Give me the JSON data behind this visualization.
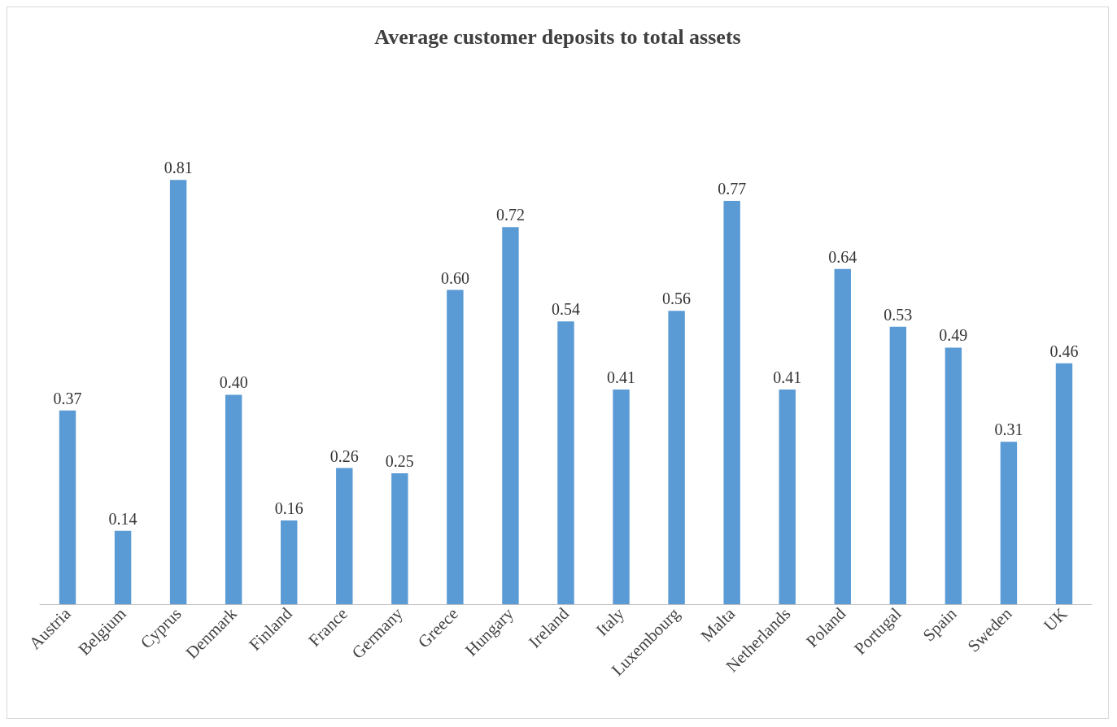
{
  "chart_data": {
    "type": "bar",
    "title": "Average customer deposits to total assets",
    "categories": [
      "Austria",
      "Belgium",
      "Cyprus",
      "Denmark",
      "Finland",
      "France",
      "Germany",
      "Greece",
      "Hungary",
      "Ireland",
      "Italy",
      "Luxembourg",
      "Malta",
      "Netherlands",
      "Poland",
      "Portugal",
      "Spain",
      "Sweden",
      "UK"
    ],
    "values": [
      0.37,
      0.14,
      0.81,
      0.4,
      0.16,
      0.26,
      0.25,
      0.6,
      0.72,
      0.54,
      0.41,
      0.56,
      0.77,
      0.41,
      0.64,
      0.53,
      0.49,
      0.31,
      0.46
    ],
    "value_labels": [
      "0.37",
      "0.14",
      "0.81",
      "0.40",
      "0.16",
      "0.26",
      "0.25",
      "0.60",
      "0.72",
      "0.54",
      "0.41",
      "0.56",
      "0.77",
      "0.41",
      "0.64",
      "0.53",
      "0.49",
      "0.31",
      "0.46"
    ],
    "color": "#5b9bd5"
  }
}
